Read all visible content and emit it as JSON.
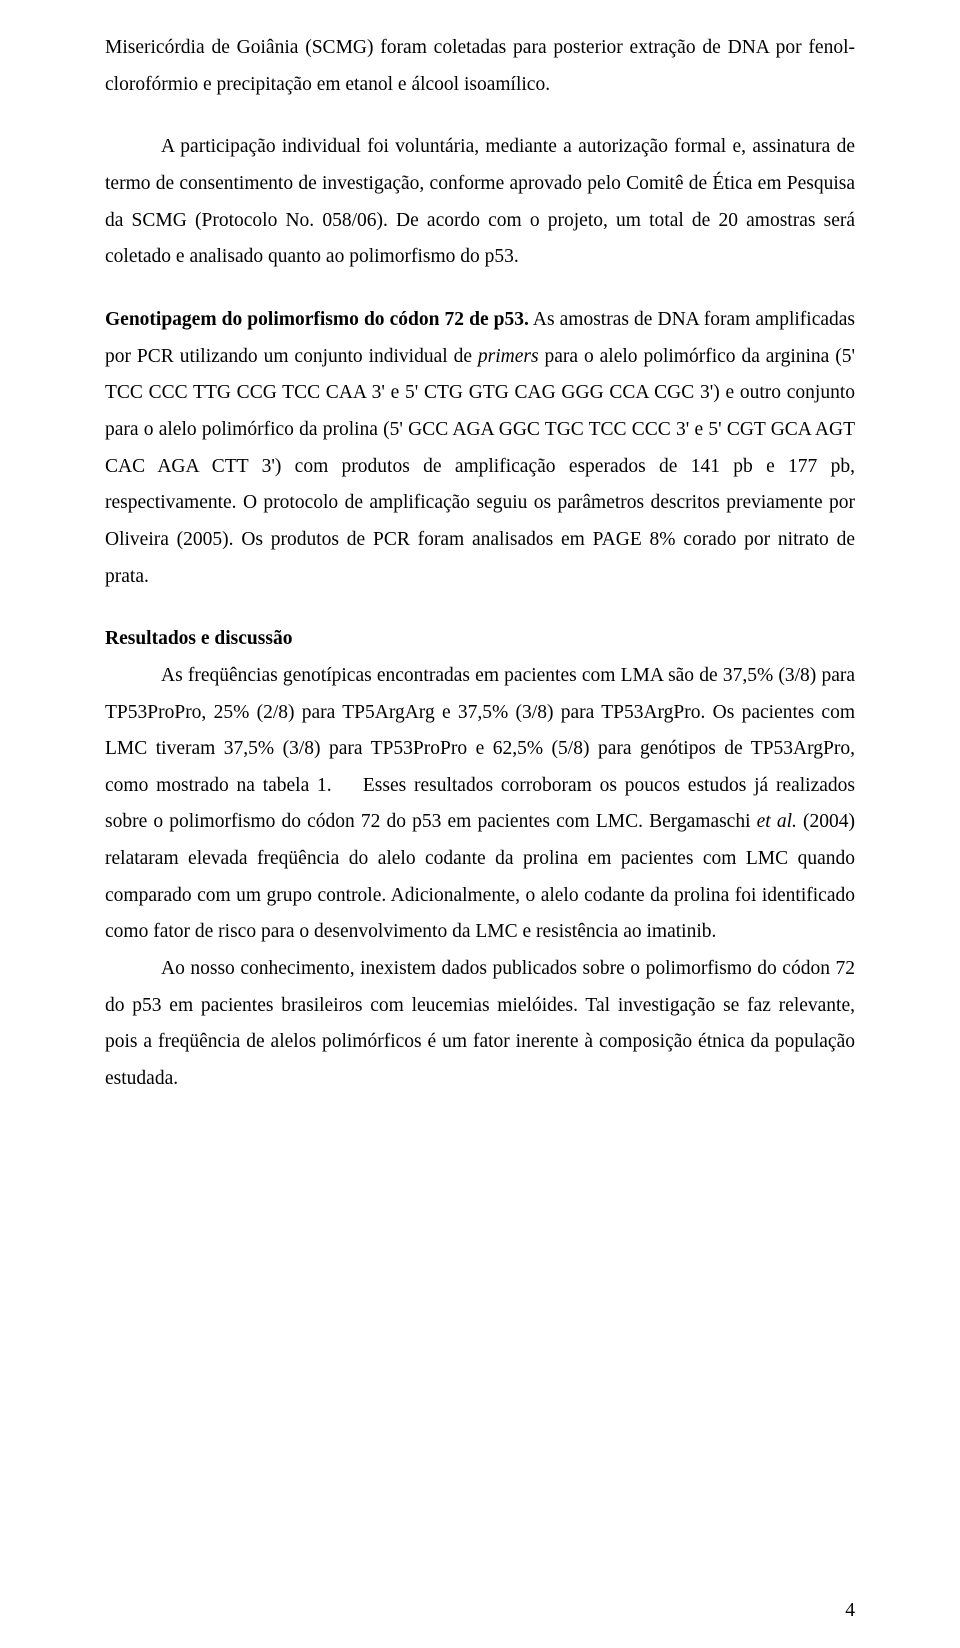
{
  "para1": "Misericórdia de Goiânia (SCMG) foram coletadas para posterior extração de DNA por fenol-clorofórmio e precipitação em etanol e álcool isoamílico.",
  "para2": "A participação individual foi voluntária, mediante a autorização formal e, assinatura de termo de consentimento de investigação, conforme aprovado pelo Comitê de Ética em Pesquisa da SCMG (Protocolo No. 058/06). De acordo com o projeto, um total de 20 amostras será coletado e analisado quanto ao polimorfismo do p53.",
  "para3_bold": "Genotipagem do polimorfismo do códon 72 de p53.",
  "para3_a": " As amostras de DNA foram amplificadas por PCR utilizando um conjunto individual de ",
  "para3_primers": "primers",
  "para3_b": " para o alelo polimórfico da arginina (5' TCC CCC TTG CCG TCC CAA 3' e 5' CTG GTG CAG GGG CCA CGC 3') e outro conjunto para o alelo polimórfico da prolina (5' GCC AGA GGC TGC TCC CCC 3' e 5' CGT GCA AGT CAC AGA CTT 3') com produtos de amplificação esperados de 141 pb e 177 pb, respectivamente. O protocolo de amplificação seguiu os parâmetros descritos previamente por Oliveira (2005). Os produtos de PCR foram analisados em PAGE 8% corado por nitrato de prata.",
  "results_title": "Resultados e discussão",
  "results_p1": "As freqüências genotípicas encontradas em pacientes com LMA são de 37,5% (3/8) para TP53ProPro, 25% (2/8) para TP5ArgArg e 37,5% (3/8) para TP53ArgPro. Os pacientes com LMC tiveram 37,5% (3/8) para TP53ProPro e 62,5% (5/8) para genótipos de TP53ArgPro, como mostrado na tabela 1.    Esses resultados corroboram os poucos estudos já realizados sobre o polimorfismo do códon 72 do p53 em pacientes com LMC. Bergamaschi ",
  "results_p1_etal": "et al.",
  "results_p1_b": " (2004) relataram elevada freqüência do alelo codante da prolina em pacientes com LMC quando comparado com um grupo controle. Adicionalmente, o alelo codante da prolina foi identificado como fator de risco para o desenvolvimento da LMC e resistência ao imatinib.",
  "results_p2": "Ao nosso conhecimento, inexistem dados publicados sobre o polimorfismo do códon 72 do p53 em pacientes brasileiros com leucemias mielóides. Tal investigação se faz relevante, pois a freqüência de alelos polimórficos é um fator inerente à composição étnica da população estudada.",
  "page_number": "4"
}
